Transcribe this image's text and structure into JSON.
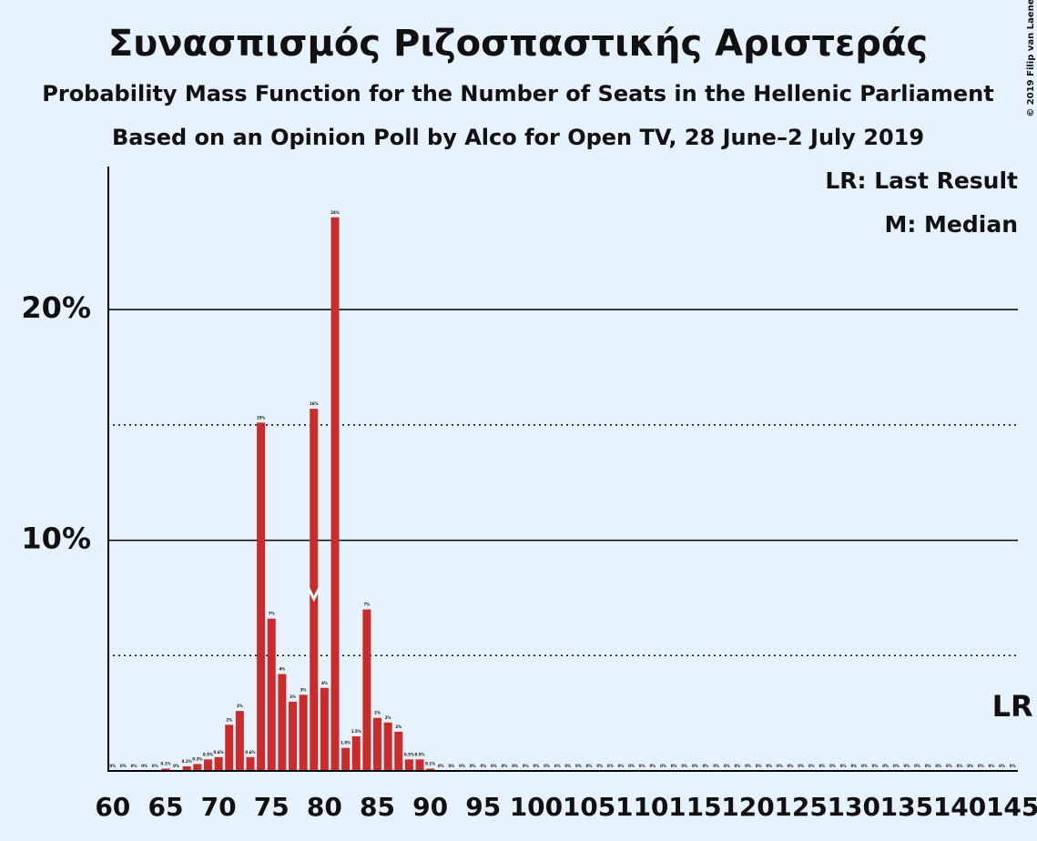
{
  "chart_data": {
    "type": "bar",
    "title": "Συνασπισμός Ριζοσπαστικής Αριστεράς",
    "subtitle": "Probability Mass Function for the Number of Seats in the Hellenic Parliament",
    "subtitle2": "Based on an Opinion Poll by Alco for Open TV, 28 June–2 July 2019",
    "copyright": "© 2019 Filip van Laenen",
    "legend": [
      "LR: Last Result",
      "M: Median"
    ],
    "color": "#cc2b2b",
    "x": [
      60,
      61,
      62,
      63,
      64,
      65,
      66,
      67,
      68,
      69,
      70,
      71,
      72,
      73,
      74,
      75,
      76,
      77,
      78,
      79,
      80,
      81,
      82,
      83,
      84,
      85,
      86,
      87,
      88,
      89,
      90,
      91,
      92,
      93,
      94,
      95,
      96,
      97,
      98,
      99,
      100,
      101,
      102,
      103,
      104,
      105,
      106,
      107,
      108,
      109,
      110,
      111,
      112,
      113,
      114,
      115,
      116,
      117,
      118,
      119,
      120,
      121,
      122,
      123,
      124,
      125,
      126,
      127,
      128,
      129,
      130,
      131,
      132,
      133,
      134,
      135,
      136,
      137,
      138,
      139,
      140,
      141,
      142,
      143,
      144,
      145
    ],
    "values": [
      0,
      0,
      0,
      0,
      0,
      0.1,
      0,
      0.2,
      0.3,
      0.5,
      0.6,
      2.0,
      2.6,
      0.6,
      15.1,
      6.6,
      4.2,
      3.0,
      3.3,
      15.7,
      3.6,
      24.0,
      1.0,
      1.5,
      7.0,
      2.3,
      2.1,
      1.7,
      0.5,
      0.5,
      0.1,
      0,
      0,
      0,
      0,
      0,
      0,
      0,
      0,
      0,
      0,
      0,
      0,
      0,
      0,
      0,
      0,
      0,
      0,
      0,
      0,
      0,
      0,
      0,
      0,
      0,
      0,
      0,
      0,
      0,
      0,
      0,
      0,
      0,
      0,
      0,
      0,
      0,
      0,
      0,
      0,
      0,
      0,
      0,
      0,
      0,
      0,
      0,
      0,
      0,
      0,
      0,
      0,
      0,
      0,
      0
    ],
    "value_labels": [
      "0%",
      "0%",
      "0%",
      "0%",
      "0%",
      "0.1%",
      "0%",
      "0.2%",
      "0.3%",
      "0.5%",
      "0.6%",
      "2%",
      "3%",
      "0.6%",
      "15%",
      "7%",
      "4%",
      "3%",
      "3%",
      "16%",
      "4%",
      "24%",
      "1.0%",
      "1.5%",
      "7%",
      "2%",
      "2%",
      "2%",
      "0.5%",
      "0.5%",
      "0.1%",
      "0%",
      "0%",
      "0%",
      "0%",
      "0%",
      "0%",
      "0%",
      "0%",
      "0%",
      "0%",
      "0%",
      "0%",
      "0%",
      "0%",
      "0%",
      "0%",
      "0%",
      "0%",
      "0%",
      "0%",
      "0%",
      "0%",
      "0%",
      "0%",
      "0%",
      "0%",
      "0%",
      "0%",
      "0%",
      "0%",
      "0%",
      "0%",
      "0%",
      "0%",
      "0%",
      "0%",
      "0%",
      "0%",
      "0%",
      "0%",
      "0%",
      "0%",
      "0%",
      "0%",
      "0%",
      "0%",
      "0%",
      "0%",
      "0%",
      "0%",
      "0%",
      "0%",
      "0%",
      "0%",
      "0%"
    ],
    "xlim": [
      59.5,
      145.5
    ],
    "xticks": [
      60,
      65,
      70,
      75,
      80,
      85,
      90,
      95,
      100,
      105,
      110,
      115,
      120,
      125,
      130,
      135,
      140,
      145
    ],
    "ylim": [
      0,
      26.2
    ],
    "yticks": [
      {
        "value": 10,
        "label": "10%"
      },
      {
        "value": 20,
        "label": "20%"
      }
    ],
    "minor_gridlines": [
      5,
      15
    ],
    "median": {
      "seats": 79
    },
    "last_result": {
      "seats": 145,
      "label": "LR"
    }
  }
}
